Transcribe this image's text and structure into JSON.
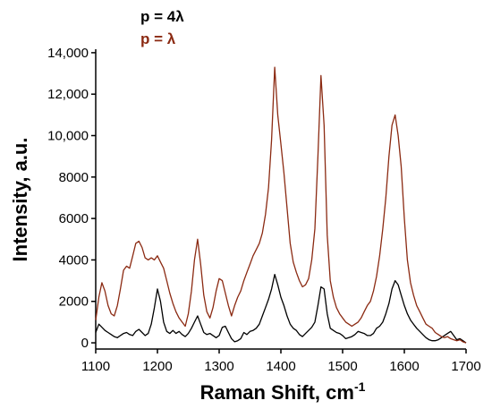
{
  "chart_data": {
    "type": "line",
    "xlabel": "Raman Shift, cm",
    "xlabel_sup": "-1",
    "ylabel": "Intensity, a.u.",
    "xlim": [
      1100,
      1700
    ],
    "ylim": [
      -300,
      14600
    ],
    "x_ticks": [
      1100,
      1200,
      1300,
      1400,
      1500,
      1600,
      1700
    ],
    "y_ticks": [
      0,
      2000,
      4000,
      6000,
      8000,
      10000,
      12000,
      14000
    ],
    "y_tick_labels": [
      "0",
      "2000",
      "4000",
      "6000",
      "8000",
      "10,000",
      "12,000",
      "14,000"
    ],
    "legend_position": "top-left",
    "grid": false,
    "series": [
      {
        "name": "p = 4λ",
        "color": "#000000",
        "x": [
          1100,
          1105,
          1110,
          1115,
          1120,
          1125,
          1130,
          1135,
          1140,
          1145,
          1150,
          1155,
          1160,
          1165,
          1170,
          1175,
          1180,
          1185,
          1190,
          1195,
          1200,
          1205,
          1210,
          1215,
          1220,
          1225,
          1230,
          1235,
          1240,
          1245,
          1250,
          1255,
          1260,
          1265,
          1270,
          1275,
          1280,
          1285,
          1290,
          1295,
          1300,
          1305,
          1310,
          1315,
          1320,
          1325,
          1330,
          1335,
          1340,
          1345,
          1350,
          1355,
          1360,
          1365,
          1370,
          1375,
          1380,
          1385,
          1390,
          1395,
          1400,
          1405,
          1410,
          1415,
          1420,
          1425,
          1430,
          1435,
          1440,
          1445,
          1450,
          1455,
          1460,
          1465,
          1470,
          1475,
          1480,
          1485,
          1490,
          1495,
          1500,
          1505,
          1510,
          1515,
          1520,
          1525,
          1530,
          1535,
          1540,
          1545,
          1550,
          1555,
          1560,
          1565,
          1570,
          1575,
          1580,
          1585,
          1590,
          1595,
          1600,
          1605,
          1610,
          1615,
          1620,
          1625,
          1630,
          1635,
          1640,
          1645,
          1650,
          1655,
          1660,
          1665,
          1670,
          1675,
          1680,
          1685,
          1690,
          1695,
          1700
        ],
        "values": [
          500,
          900,
          750,
          600,
          500,
          400,
          300,
          250,
          350,
          450,
          500,
          400,
          350,
          550,
          650,
          500,
          350,
          450,
          900,
          1700,
          2600,
          2000,
          1000,
          550,
          450,
          600,
          450,
          550,
          400,
          300,
          450,
          700,
          1000,
          1300,
          900,
          500,
          400,
          450,
          350,
          250,
          350,
          750,
          800,
          500,
          200,
          50,
          100,
          200,
          500,
          400,
          550,
          600,
          700,
          900,
          1300,
          1700,
          2100,
          2600,
          3300,
          2800,
          2200,
          1800,
          1300,
          900,
          700,
          600,
          400,
          300,
          450,
          600,
          750,
          1000,
          1800,
          2700,
          2600,
          1400,
          700,
          600,
          500,
          450,
          350,
          200,
          250,
          300,
          400,
          550,
          500,
          450,
          350,
          350,
          450,
          700,
          800,
          1000,
          1400,
          1900,
          2600,
          3000,
          2800,
          2300,
          1800,
          1400,
          1100,
          900,
          700,
          550,
          400,
          250,
          150,
          100,
          100,
          150,
          250,
          350,
          450,
          550,
          350,
          150,
          200,
          100,
          0
        ]
      },
      {
        "name": "p = λ",
        "color": "#8B2A12",
        "x": [
          1100,
          1105,
          1110,
          1115,
          1120,
          1125,
          1130,
          1135,
          1140,
          1145,
          1150,
          1155,
          1160,
          1165,
          1170,
          1175,
          1180,
          1185,
          1190,
          1195,
          1200,
          1205,
          1210,
          1215,
          1220,
          1225,
          1230,
          1235,
          1240,
          1245,
          1250,
          1255,
          1260,
          1265,
          1270,
          1275,
          1280,
          1285,
          1290,
          1295,
          1300,
          1305,
          1310,
          1315,
          1320,
          1325,
          1330,
          1335,
          1340,
          1345,
          1350,
          1355,
          1360,
          1365,
          1370,
          1375,
          1380,
          1385,
          1390,
          1395,
          1400,
          1405,
          1410,
          1415,
          1420,
          1425,
          1430,
          1435,
          1440,
          1445,
          1450,
          1455,
          1460,
          1465,
          1470,
          1475,
          1480,
          1485,
          1490,
          1495,
          1500,
          1505,
          1510,
          1515,
          1520,
          1525,
          1530,
          1535,
          1540,
          1545,
          1550,
          1555,
          1560,
          1565,
          1570,
          1575,
          1580,
          1585,
          1590,
          1595,
          1600,
          1605,
          1610,
          1615,
          1620,
          1625,
          1630,
          1635,
          1640,
          1645,
          1650,
          1655,
          1660,
          1665,
          1670,
          1675,
          1680,
          1685,
          1690,
          1695,
          1700
        ],
        "values": [
          1100,
          2200,
          2900,
          2500,
          1800,
          1400,
          1300,
          1800,
          2600,
          3500,
          3700,
          3600,
          4200,
          4800,
          4900,
          4600,
          4100,
          4000,
          4100,
          4000,
          4200,
          3900,
          3600,
          3000,
          2400,
          1900,
          1500,
          1200,
          1000,
          800,
          1400,
          2500,
          4000,
          5000,
          3800,
          2300,
          1500,
          1200,
          1700,
          2500,
          3100,
          3000,
          2400,
          1800,
          1300,
          1800,
          2200,
          2500,
          3000,
          3400,
          3800,
          4200,
          4500,
          4800,
          5300,
          6200,
          7500,
          9800,
          13300,
          11000,
          9600,
          8200,
          6500,
          4800,
          3900,
          3400,
          3000,
          2700,
          2800,
          3100,
          4000,
          5500,
          9000,
          12900,
          10500,
          5200,
          3000,
          2200,
          1700,
          1400,
          1200,
          1000,
          900,
          800,
          900,
          1000,
          1200,
          1500,
          1800,
          2000,
          2500,
          3200,
          4200,
          5500,
          7000,
          9000,
          10500,
          11000,
          10000,
          8500,
          6000,
          4000,
          2900,
          2300,
          1800,
          1500,
          1200,
          900,
          800,
          700,
          500,
          400,
          300,
          250,
          300,
          200,
          150,
          100,
          150,
          50,
          0
        ]
      }
    ]
  }
}
